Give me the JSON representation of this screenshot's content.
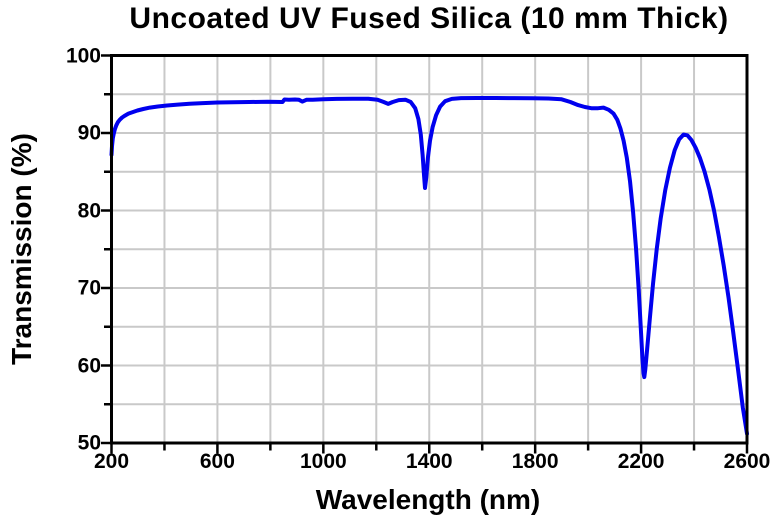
{
  "chart_data": {
    "type": "line",
    "title": "Uncoated UV Fused Silica (10 mm Thick)",
    "xlabel": "Wavelength (nm)",
    "ylabel": "Transmission (%)",
    "xlim": [
      200,
      2600
    ],
    "ylim": [
      50,
      100
    ],
    "x_major_ticks": [
      200,
      600,
      1000,
      1400,
      1800,
      2200,
      2600
    ],
    "x_minor_ticks": [
      400,
      800,
      1200,
      1600,
      2000,
      2400
    ],
    "y_major_ticks": [
      50,
      60,
      70,
      80,
      90,
      100
    ],
    "y_minor_ticks": [
      55,
      65,
      75,
      85,
      95
    ],
    "grid": true,
    "legend_position": "none",
    "colors": {
      "line": "#0000EE",
      "grid": "#C9C9C9",
      "axis": "#000000",
      "background": "#FFFFFF",
      "text": "#000000"
    },
    "series": [
      {
        "name": "Transmission",
        "points": [
          [
            200,
            87.2
          ],
          [
            202,
            88.3
          ],
          [
            205,
            89.3
          ],
          [
            209,
            90.0
          ],
          [
            213,
            90.5
          ],
          [
            218,
            91.0
          ],
          [
            224,
            91.4
          ],
          [
            231,
            91.7
          ],
          [
            240,
            92.0
          ],
          [
            251,
            92.25
          ],
          [
            264,
            92.5
          ],
          [
            280,
            92.7
          ],
          [
            298,
            92.9
          ],
          [
            320,
            93.1
          ],
          [
            345,
            93.28
          ],
          [
            375,
            93.42
          ],
          [
            410,
            93.55
          ],
          [
            450,
            93.67
          ],
          [
            495,
            93.78
          ],
          [
            545,
            93.86
          ],
          [
            600,
            93.93
          ],
          [
            660,
            93.98
          ],
          [
            720,
            94.0
          ],
          [
            790,
            94.02
          ],
          [
            846,
            94.0
          ],
          [
            853,
            94.32
          ],
          [
            870,
            94.3
          ],
          [
            893,
            94.32
          ],
          [
            908,
            94.28
          ],
          [
            921,
            94.05
          ],
          [
            936,
            94.28
          ],
          [
            960,
            94.3
          ],
          [
            1000,
            94.35
          ],
          [
            1050,
            94.4
          ],
          [
            1110,
            94.42
          ],
          [
            1170,
            94.42
          ],
          [
            1205,
            94.3
          ],
          [
            1228,
            94.0
          ],
          [
            1245,
            93.75
          ],
          [
            1262,
            94.0
          ],
          [
            1285,
            94.25
          ],
          [
            1310,
            94.3
          ],
          [
            1330,
            94.0
          ],
          [
            1347,
            93.2
          ],
          [
            1359,
            91.8
          ],
          [
            1368,
            89.8
          ],
          [
            1375,
            87.2
          ],
          [
            1380,
            84.6
          ],
          [
            1384,
            82.9
          ],
          [
            1389,
            84.3
          ],
          [
            1395,
            86.8
          ],
          [
            1403,
            89.0
          ],
          [
            1413,
            90.8
          ],
          [
            1426,
            92.3
          ],
          [
            1441,
            93.4
          ],
          [
            1460,
            94.1
          ],
          [
            1485,
            94.4
          ],
          [
            1520,
            94.5
          ],
          [
            1580,
            94.52
          ],
          [
            1650,
            94.52
          ],
          [
            1720,
            94.5
          ],
          [
            1790,
            94.48
          ],
          [
            1850,
            94.45
          ],
          [
            1900,
            94.35
          ],
          [
            1933,
            94.0
          ],
          [
            1962,
            93.6
          ],
          [
            1988,
            93.35
          ],
          [
            2012,
            93.2
          ],
          [
            2038,
            93.2
          ],
          [
            2058,
            93.28
          ],
          [
            2078,
            93.0
          ],
          [
            2096,
            92.5
          ],
          [
            2110,
            91.7
          ],
          [
            2122,
            90.6
          ],
          [
            2134,
            89.0
          ],
          [
            2146,
            86.8
          ],
          [
            2158,
            83.8
          ],
          [
            2170,
            79.8
          ],
          [
            2181,
            75.0
          ],
          [
            2191,
            69.8
          ],
          [
            2199,
            64.8
          ],
          [
            2205,
            61.0
          ],
          [
            2209,
            59.0
          ],
          [
            2212,
            58.5
          ],
          [
            2216,
            59.5
          ],
          [
            2223,
            62.2
          ],
          [
            2233,
            66.0
          ],
          [
            2245,
            70.5
          ],
          [
            2259,
            75.0
          ],
          [
            2274,
            79.0
          ],
          [
            2291,
            82.6
          ],
          [
            2309,
            85.5
          ],
          [
            2327,
            87.8
          ],
          [
            2344,
            89.2
          ],
          [
            2360,
            89.8
          ],
          [
            2375,
            89.7
          ],
          [
            2390,
            89.1
          ],
          [
            2406,
            88.1
          ],
          [
            2422,
            86.8
          ],
          [
            2440,
            85.0
          ],
          [
            2458,
            82.7
          ],
          [
            2476,
            79.9
          ],
          [
            2494,
            76.6
          ],
          [
            2512,
            72.9
          ],
          [
            2530,
            68.8
          ],
          [
            2548,
            64.3
          ],
          [
            2566,
            59.5
          ],
          [
            2584,
            54.6
          ],
          [
            2600,
            51.2
          ]
        ]
      }
    ]
  }
}
